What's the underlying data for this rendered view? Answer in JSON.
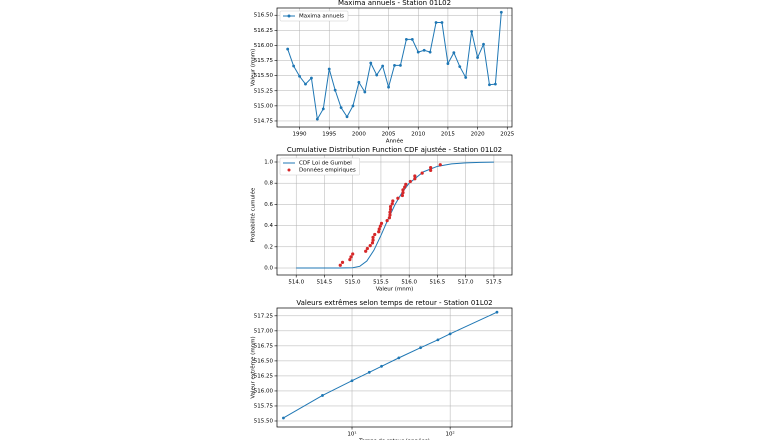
{
  "chart_data": [
    {
      "type": "line",
      "title": "Maxima annuels - Station 01L02",
      "xlabel": "Année",
      "ylabel": "Valeur (mnm)",
      "grid": true,
      "legend": "upper left",
      "xlim": [
        1986.2,
        2025.8
      ],
      "xticks": [
        1990,
        1995,
        2000,
        2005,
        2010,
        2015,
        2020,
        2025
      ],
      "ylim": [
        514.65,
        516.62
      ],
      "yticks": [
        {
          "value": 514.75,
          "label": "514.75"
        },
        {
          "value": 515.0,
          "label": "515.00"
        },
        {
          "value": 515.25,
          "label": "515.25"
        },
        {
          "value": 515.5,
          "label": "515.50"
        },
        {
          "value": 515.75,
          "label": "515.75"
        },
        {
          "value": 516.0,
          "label": "516.00"
        },
        {
          "value": 516.25,
          "label": "516.25"
        },
        {
          "value": 516.5,
          "label": "516.50"
        }
      ],
      "series": [
        {
          "name": "Maxima annuels",
          "type": "line",
          "marker": true,
          "color": "#1f77b4",
          "x": [
            1988,
            1989,
            1990,
            1991,
            1992,
            1993,
            1994,
            1995,
            1996,
            1997,
            1998,
            1999,
            2000,
            2001,
            2002,
            2003,
            2004,
            2005,
            2006,
            2007,
            2008,
            2009,
            2010,
            2011,
            2012,
            2013,
            2014,
            2015,
            2016,
            2017,
            2018,
            2019,
            2020,
            2021,
            2022,
            2023,
            2024
          ],
          "values": [
            515.94,
            515.66,
            515.49,
            515.36,
            515.46,
            514.78,
            514.95,
            515.61,
            515.26,
            514.97,
            514.82,
            515.0,
            515.39,
            515.23,
            515.71,
            515.51,
            515.66,
            515.31,
            515.67,
            515.67,
            516.1,
            516.1,
            515.89,
            515.92,
            515.89,
            516.38,
            516.38,
            515.7,
            515.88,
            515.65,
            515.47,
            516.23,
            515.8,
            516.02,
            515.35,
            515.36,
            516.55
          ]
        }
      ]
    },
    {
      "type": "combo",
      "title": "Cumulative Distribution Function CDF ajustée - Station 01L02",
      "xlabel": "Valeur (mnm)",
      "ylabel": "Probabilité cumulée",
      "grid": true,
      "legend": "upper left",
      "xlim": [
        513.66,
        517.82
      ],
      "xticks": [
        {
          "value": 514.0,
          "label": "514.0"
        },
        {
          "value": 514.5,
          "label": "514.5"
        },
        {
          "value": 515.0,
          "label": "515.0"
        },
        {
          "value": 515.5,
          "label": "515.5"
        },
        {
          "value": 516.0,
          "label": "516.0"
        },
        {
          "value": 516.5,
          "label": "516.5"
        },
        {
          "value": 517.0,
          "label": "517.0"
        },
        {
          "value": 517.5,
          "label": "517.5"
        }
      ],
      "ylim": [
        -0.066,
        1.066
      ],
      "yticks": [
        {
          "value": 0,
          "label": "0.0"
        },
        {
          "value": 0.2,
          "label": "0.2"
        },
        {
          "value": 0.4,
          "label": "0.4"
        },
        {
          "value": 0.6,
          "label": "0.6"
        },
        {
          "value": 0.8,
          "label": "0.8"
        },
        {
          "value": 1,
          "label": "1.0"
        }
      ],
      "series": [
        {
          "name": "CDF Loi de Gumbel",
          "type": "line",
          "marker": false,
          "color": "#1f77b4",
          "x": [
            514.0,
            514.5,
            514.75,
            515.0,
            515.125,
            515.25,
            515.375,
            515.5,
            515.625,
            515.75,
            515.875,
            516.0,
            516.25,
            516.5,
            516.75,
            517.0,
            517.25,
            517.5
          ],
          "values": [
            0,
            0,
            0,
            0.002,
            0.016,
            0.066,
            0.167,
            0.307,
            0.459,
            0.599,
            0.713,
            0.8,
            0.907,
            0.959,
            0.982,
            0.992,
            0.9965,
            0.9985
          ]
        },
        {
          "name": "Données empiriques",
          "type": "scatter",
          "marker": true,
          "color": "#d62728",
          "x": [
            514.78,
            514.82,
            514.95,
            514.97,
            515.0,
            515.23,
            515.26,
            515.31,
            515.35,
            515.36,
            515.36,
            515.39,
            515.46,
            515.47,
            515.49,
            515.51,
            515.61,
            515.65,
            515.66,
            515.66,
            515.67,
            515.67,
            515.7,
            515.71,
            515.8,
            515.88,
            515.89,
            515.89,
            515.92,
            515.94,
            516.02,
            516.1,
            516.1,
            516.23,
            516.38,
            516.38,
            516.55
          ],
          "values": [
            0.026,
            0.053,
            0.079,
            0.105,
            0.132,
            0.158,
            0.184,
            0.211,
            0.237,
            0.263,
            0.289,
            0.316,
            0.342,
            0.368,
            0.395,
            0.421,
            0.447,
            0.474,
            0.5,
            0.526,
            0.553,
            0.579,
            0.605,
            0.632,
            0.658,
            0.684,
            0.711,
            0.737,
            0.763,
            0.789,
            0.816,
            0.842,
            0.868,
            0.895,
            0.921,
            0.947,
            0.974
          ]
        }
      ]
    },
    {
      "type": "line",
      "title": "Valeurs extrêmes selon temps de retour - Station 01L02",
      "xlabel": "Temps de retour (années)",
      "ylabel": "Valeur extrême (mnm)",
      "grid": true,
      "xscale": "log",
      "xlim": [
        1.72,
        427
      ],
      "xticks": [
        {
          "value": 10,
          "label": "10¹"
        },
        {
          "value": 100,
          "label": "10²"
        }
      ],
      "ylim": [
        515.4,
        517.38
      ],
      "yticks": [
        {
          "value": 515.5,
          "label": "515.50"
        },
        {
          "value": 515.75,
          "label": "515.75"
        },
        {
          "value": 516.0,
          "label": "516.00"
        },
        {
          "value": 516.25,
          "label": "516.25"
        },
        {
          "value": 516.5,
          "label": "516.50"
        },
        {
          "value": 516.75,
          "label": "516.75"
        },
        {
          "value": 517.0,
          "label": "517.00"
        },
        {
          "value": 517.25,
          "label": "517.25"
        }
      ],
      "series": [
        {
          "type": "line",
          "marker": true,
          "color": "#1f77b4",
          "x": [
            2,
            5,
            10,
            15,
            20,
            30,
            50,
            75,
            100,
            300
          ],
          "values": [
            515.55,
            515.925,
            516.17,
            516.31,
            516.41,
            516.55,
            516.72,
            516.85,
            516.95,
            517.31
          ]
        }
      ]
    }
  ]
}
